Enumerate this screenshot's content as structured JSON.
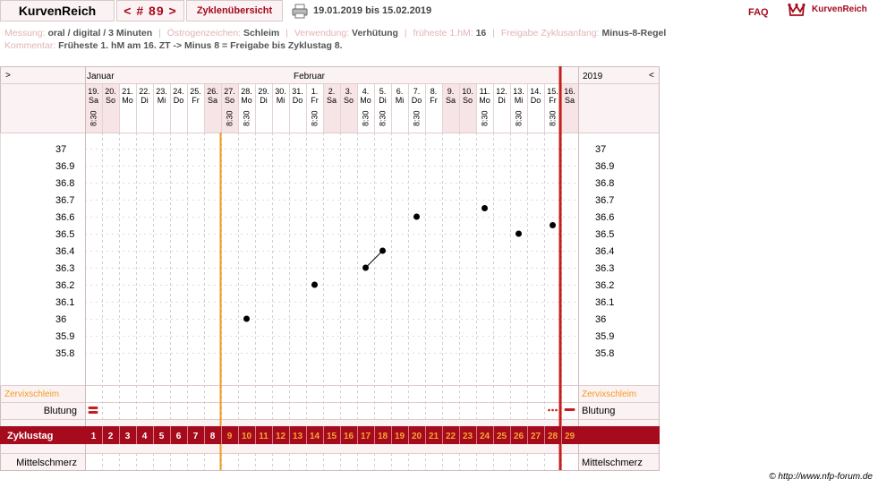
{
  "header": {
    "brand": "KurvenReich",
    "cycle_nav": "< # 89 >",
    "overview": "Zyklenübersicht",
    "printer_icon": "printer-icon",
    "date_range": "19.01.2019 bis 15.02.2019",
    "faq": "FAQ",
    "logo_text": "KurvenReich"
  },
  "info": {
    "messung_label": "Messung:",
    "messung_value": "oral / digital / 3 Minuten",
    "oestrogen_label": "Östrogenzeichen:",
    "oestrogen_value": "Schleim",
    "verwendung_label": "Verwendung:",
    "verwendung_value": "Verhütung",
    "fruehste_label": "früheste 1.hM:",
    "fruehste_value": "16",
    "freigabe_label": "Freigabe Zyklusanfang:",
    "freigabe_value": "Minus-8-Regel",
    "kommentar_label": "Kommentar:",
    "kommentar_value": "Früheste 1. hM am 16. ZT -> Minus 8 = Freigabe bis Zyklustag 8."
  },
  "nav": {
    "left": ">",
    "right": "<",
    "year": "2019"
  },
  "months": [
    "Januar",
    "Februar"
  ],
  "days": [
    {
      "date": "19.",
      "wd": "Sa",
      "time": "8:30",
      "cd": 1
    },
    {
      "date": "20.",
      "wd": "So",
      "time": "",
      "cd": 2
    },
    {
      "date": "21.",
      "wd": "Mo",
      "time": "",
      "cd": 3
    },
    {
      "date": "22.",
      "wd": "Di",
      "time": "",
      "cd": 4
    },
    {
      "date": "23.",
      "wd": "Mi",
      "time": "",
      "cd": 5
    },
    {
      "date": "24.",
      "wd": "Do",
      "time": "",
      "cd": 6
    },
    {
      "date": "25.",
      "wd": "Fr",
      "time": "",
      "cd": 7
    },
    {
      "date": "26.",
      "wd": "Sa",
      "time": "",
      "cd": 8
    },
    {
      "date": "27.",
      "wd": "So",
      "time": "8:30",
      "cd": 9
    },
    {
      "date": "28.",
      "wd": "Mo",
      "time": "8:30",
      "cd": 10
    },
    {
      "date": "29.",
      "wd": "Di",
      "time": "",
      "cd": 11
    },
    {
      "date": "30.",
      "wd": "Mi",
      "time": "",
      "cd": 12
    },
    {
      "date": "31.",
      "wd": "Do",
      "time": "",
      "cd": 13
    },
    {
      "date": "1.",
      "wd": "Fr",
      "time": "8:30",
      "cd": 14
    },
    {
      "date": "2.",
      "wd": "Sa",
      "time": "",
      "cd": 15
    },
    {
      "date": "3.",
      "wd": "So",
      "time": "",
      "cd": 16
    },
    {
      "date": "4.",
      "wd": "Mo",
      "time": "8:30",
      "cd": 17
    },
    {
      "date": "5.",
      "wd": "Di",
      "time": "8:30",
      "cd": 18
    },
    {
      "date": "6.",
      "wd": "Mi",
      "time": "",
      "cd": 19
    },
    {
      "date": "7.",
      "wd": "Do",
      "time": "8:30",
      "cd": 20
    },
    {
      "date": "8.",
      "wd": "Fr",
      "time": "",
      "cd": 21
    },
    {
      "date": "9.",
      "wd": "Sa",
      "time": "",
      "cd": 22
    },
    {
      "date": "10.",
      "wd": "So",
      "time": "",
      "cd": 23
    },
    {
      "date": "11.",
      "wd": "Mo",
      "time": "8:30",
      "cd": 24
    },
    {
      "date": "12.",
      "wd": "Di",
      "time": "",
      "cd": 25
    },
    {
      "date": "13.",
      "wd": "Mi",
      "time": "8:30",
      "cd": 26
    },
    {
      "date": "14.",
      "wd": "Do",
      "time": "",
      "cd": 27
    },
    {
      "date": "15.",
      "wd": "Fr",
      "time": "8:30",
      "cd": 28
    },
    {
      "date": "16.",
      "wd": "Sa",
      "time": "",
      "cd": 29
    }
  ],
  "rows": {
    "zervix": "Zervixschleim",
    "blutung": "Blutung",
    "zyklustag": "Zyklustag",
    "mittelschmerz": "Mittelschmerz"
  },
  "footer": "© http://www.nfp-forum.de",
  "colors": {
    "accent": "#a50b1c",
    "orange": "#f29a1f",
    "red_line": "#c81d1d",
    "weekend": "#f7e4e6",
    "bg": "#fbf3f3",
    "cycle_day_text": "#f7a432"
  },
  "chart_data": {
    "type": "line",
    "xlabel": "",
    "ylabel": "",
    "yticks": [
      "37",
      "36.9",
      "36.8",
      "36.7",
      "36.6",
      "36.5",
      "36.4",
      "36.3",
      "36.2",
      "36.1",
      "36",
      "35.9",
      "35.8"
    ],
    "ylim": [
      35.8,
      37.0
    ],
    "points": [
      {
        "cd": 10,
        "date": "28.",
        "temp": 36.0
      },
      {
        "cd": 14,
        "date": "1.",
        "temp": 36.2
      },
      {
        "cd": 17,
        "date": "4.",
        "temp": 36.3
      },
      {
        "cd": 18,
        "date": "5.",
        "temp": 36.4
      },
      {
        "cd": 20,
        "date": "7.",
        "temp": 36.6
      },
      {
        "cd": 24,
        "date": "11.",
        "temp": 36.65
      },
      {
        "cd": 26,
        "date": "13.",
        "temp": 36.5
      },
      {
        "cd": 28,
        "date": "15.",
        "temp": 36.55
      }
    ],
    "connected_pairs": [
      [
        17,
        18
      ]
    ],
    "weekend_cycle_days": [
      1,
      2,
      8,
      9,
      15,
      16,
      22,
      23,
      29
    ],
    "orange_line_cycle_day": 9,
    "red_line_after_cycle_day": 28,
    "bleeding": [
      {
        "cd": 1,
        "type": "heavy"
      },
      {
        "cd": 28,
        "type": "spotting"
      },
      {
        "cd": 29,
        "type": "light"
      }
    ],
    "grid": "dashed"
  }
}
